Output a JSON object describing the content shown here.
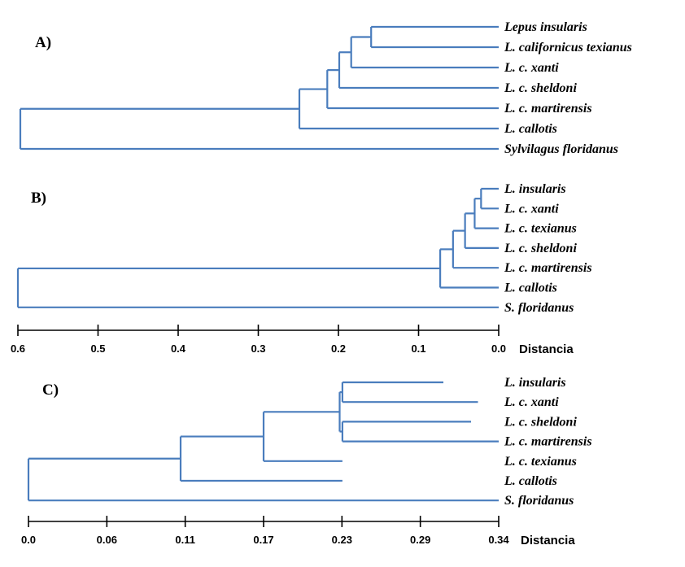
{
  "colors": {
    "branch": "#4a7dbd",
    "axis": "#000000"
  },
  "panels": [
    {
      "label": "A)",
      "root": {
        "x": 0.6,
        "children": [
          {
            "x": 0.25,
            "children": [
              {
                "x": 0.215,
                "children": [
                  {
                    "x": 0.2,
                    "children": [
                      {
                        "x": 0.185,
                        "children": [
                          {
                            "x": 0.16,
                            "children": [
                              {
                                "x": 0.0,
                                "label": "Lepus insularis"
                              },
                              {
                                "x": 0.0,
                                "label": "L. californicus texianus"
                              }
                            ]
                          },
                          {
                            "x": 0.0,
                            "label": "L. c. xanti"
                          }
                        ]
                      },
                      {
                        "x": 0.0,
                        "label": "L. c. sheldoni"
                      }
                    ]
                  },
                  {
                    "x": 0.0,
                    "label": "L. c. martirensis"
                  }
                ]
              },
              {
                "x": 0.0,
                "label": "L. callotis"
              }
            ]
          },
          {
            "x": 0.0,
            "label": "Sylvilagus floridanus"
          }
        ]
      }
    },
    {
      "label": "B)",
      "root": {
        "x": 0.6,
        "children": [
          {
            "x": 0.073,
            "children": [
              {
                "x": 0.057,
                "children": [
                  {
                    "x": 0.042,
                    "children": [
                      {
                        "x": 0.03,
                        "children": [
                          {
                            "x": 0.022,
                            "children": [
                              {
                                "x": 0.0,
                                "label": "L. insularis"
                              },
                              {
                                "x": 0.0,
                                "label": "L. c. xanti"
                              }
                            ]
                          },
                          {
                            "x": 0.0,
                            "label": "L. c. texianus"
                          }
                        ]
                      },
                      {
                        "x": 0.0,
                        "label": "L. c. sheldoni"
                      }
                    ]
                  },
                  {
                    "x": 0.0,
                    "label": "L. c. martirensis"
                  }
                ]
              },
              {
                "x": 0.0,
                "label": "L. callotis"
              }
            ]
          },
          {
            "x": 0.0,
            "label": "S. floridanus"
          }
        ]
      }
    },
    {
      "label": "C)",
      "root": {
        "x": 0.0,
        "children": [
          {
            "x": 0.11,
            "children": [
              {
                "x": 0.17,
                "children": [
                  {
                    "x": 0.225,
                    "children": [
                      {
                        "x": 0.227,
                        "children": [
                          {
                            "x": 0.3,
                            "label": "L. insularis"
                          },
                          {
                            "x": 0.325,
                            "label": "L. c. xanti"
                          }
                        ]
                      },
                      {
                        "x": 0.227,
                        "children": [
                          {
                            "x": 0.32,
                            "label": "L. c. sheldoni"
                          },
                          {
                            "x": 0.34,
                            "label": "L. c. martirensis"
                          }
                        ]
                      }
                    ]
                  },
                  {
                    "x": 0.227,
                    "label": "L. c. texianus"
                  }
                ]
              },
              {
                "x": 0.227,
                "label": "L. callotis"
              }
            ]
          },
          {
            "x": 0.34,
            "label": "S. floridanus"
          }
        ]
      }
    }
  ],
  "axes": [
    {
      "ticks": [
        "0.6",
        "0.5",
        "0.4",
        "0.3",
        "0.2",
        "0.1",
        "0.0"
      ],
      "label": "Distancia"
    },
    {
      "ticks": [
        "0.0",
        "0.06",
        "0.11",
        "0.17",
        "0.23",
        "0.29",
        "0.34"
      ],
      "label": "Distancia"
    }
  ]
}
